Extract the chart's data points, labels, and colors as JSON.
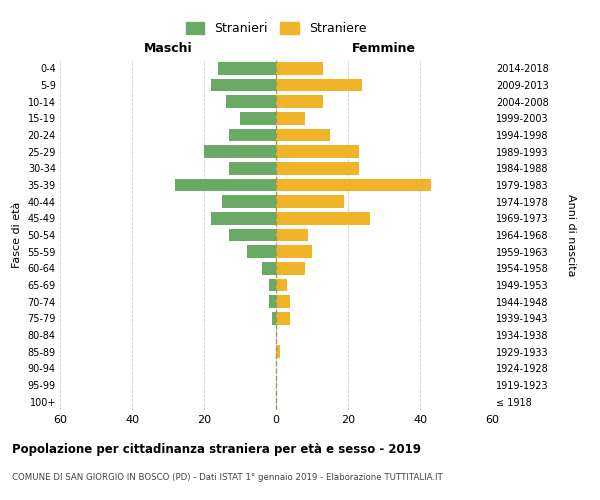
{
  "age_groups": [
    "100+",
    "95-99",
    "90-94",
    "85-89",
    "80-84",
    "75-79",
    "70-74",
    "65-69",
    "60-64",
    "55-59",
    "50-54",
    "45-49",
    "40-44",
    "35-39",
    "30-34",
    "25-29",
    "20-24",
    "15-19",
    "10-14",
    "5-9",
    "0-4"
  ],
  "birth_years": [
    "≤ 1918",
    "1919-1923",
    "1924-1928",
    "1929-1933",
    "1934-1938",
    "1939-1943",
    "1944-1948",
    "1949-1953",
    "1954-1958",
    "1959-1963",
    "1964-1968",
    "1969-1973",
    "1974-1978",
    "1979-1983",
    "1984-1988",
    "1989-1993",
    "1994-1998",
    "1999-2003",
    "2004-2008",
    "2009-2013",
    "2014-2018"
  ],
  "maschi": [
    0,
    0,
    0,
    0,
    0,
    1,
    2,
    2,
    4,
    8,
    13,
    18,
    15,
    28,
    13,
    20,
    13,
    10,
    14,
    18,
    16
  ],
  "femmine": [
    0,
    0,
    0,
    1,
    0,
    4,
    4,
    3,
    8,
    10,
    9,
    26,
    19,
    43,
    23,
    23,
    15,
    8,
    13,
    24,
    13
  ],
  "male_color": "#6aaa64",
  "female_color": "#f0b429",
  "title": "Popolazione per cittadinanza straniera per età e sesso - 2019",
  "subtitle": "COMUNE DI SAN GIORGIO IN BOSCO (PD) - Dati ISTAT 1° gennaio 2019 - Elaborazione TUTTITALIA.IT",
  "xlabel_left": "Maschi",
  "xlabel_right": "Femmine",
  "ylabel_left": "Fasce di età",
  "ylabel_right": "Anni di nascita",
  "legend_male": "Stranieri",
  "legend_female": "Straniere",
  "xlim": 60,
  "background_color": "#ffffff",
  "grid_color": "#cccccc"
}
